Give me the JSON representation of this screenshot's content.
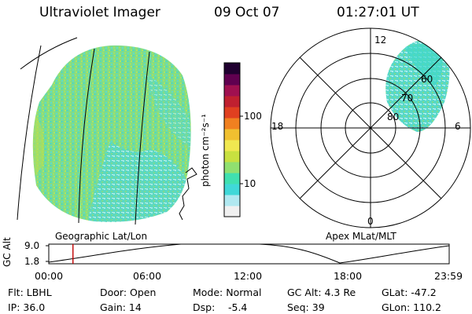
{
  "header": {
    "instrument": "Ultraviolet Imager",
    "date": "09 Oct 07",
    "time": "01:27:01 UT"
  },
  "panels": {
    "geographic_label": "Geographic Lat/Lon",
    "apex_label": "Apex MLat/MLT"
  },
  "colorbar": {
    "unit_label": "photon cm⁻²s⁻¹",
    "tick_100": "100",
    "tick_10": "10",
    "colors": [
      "#f0f0f0",
      "#b0e8f0",
      "#40d8d8",
      "#40e0b0",
      "#90e070",
      "#c8e040",
      "#f0e850",
      "#f0c030",
      "#f08020",
      "#e04020",
      "#c02030",
      "#a01050",
      "#600050",
      "#200030"
    ]
  },
  "polar_labels": {
    "mlt_12": "12",
    "mlt_18": "18",
    "mlt_6": "6",
    "mlt_0": "0",
    "lat_60": "60",
    "lat_70": "70",
    "lat_80": "80"
  },
  "altitude_plot": {
    "ylabel": "GC Alt",
    "ytick_top": "9.0",
    "ytick_bottom": "1.8",
    "xticks": [
      "00:00",
      "06:00",
      "12:00",
      "18:00",
      "23:59"
    ],
    "current_hour": 1.45,
    "line_color": "#c00000"
  },
  "status": {
    "filter": "Flt: LBHL",
    "door": "Door: Open",
    "mode": "Mode: Normal",
    "gc_alt": "GC Alt: 4.3 Re",
    "glat": "GLat: -47.2",
    "ip": "IP: 36.0",
    "gain": "Gain: 14",
    "dsp_label": "Dsp:",
    "dsp_value": "-5.4",
    "seq": "Seq: 39",
    "glon": "GLon: 110.2"
  }
}
